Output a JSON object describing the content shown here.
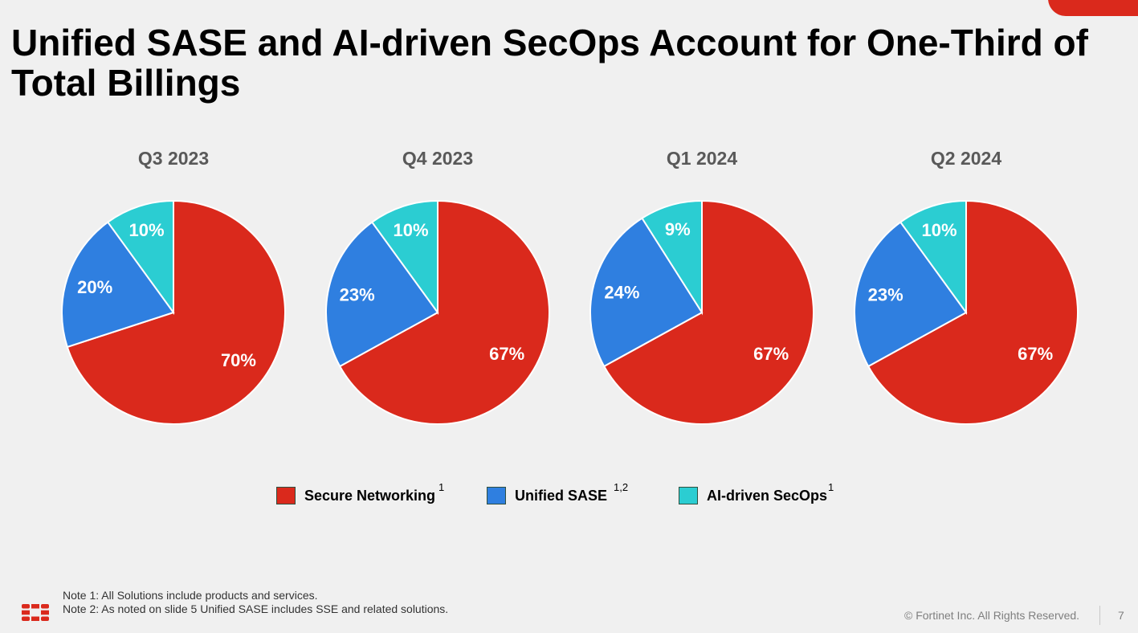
{
  "slide": {
    "title": "Unified SASE and AI-driven SecOps Account for One-Third of Total Billings",
    "notes": [
      "Note 1: All Solutions include products and services.",
      "Note 2: As noted on slide 5 Unified SASE includes SSE and related solutions."
    ],
    "copyright": "© Fortinet Inc. All Rights Reserved.",
    "page_number": "7",
    "logo_icon": "fortinet-logo-icon"
  },
  "legend": [
    {
      "label": "Secure Networking",
      "sup": "1",
      "color": "#da291c"
    },
    {
      "label": "Unified SASE",
      "sup": "1,2",
      "color": "#2f7fe0"
    },
    {
      "label": "AI-driven SecOps",
      "sup": "1",
      "color": "#2bcdd2"
    }
  ],
  "chart_data": [
    {
      "type": "pie",
      "title": "Q3 2023",
      "categories": [
        "Secure Networking",
        "Unified SASE",
        "AI-driven SecOps"
      ],
      "values": [
        70,
        20,
        10
      ],
      "labels": [
        "70%",
        "20%",
        "10%"
      ]
    },
    {
      "type": "pie",
      "title": "Q4 2023",
      "categories": [
        "Secure Networking",
        "Unified SASE",
        "AI-driven SecOps"
      ],
      "values": [
        67,
        23,
        10
      ],
      "labels": [
        "67%",
        "23%",
        "10%"
      ]
    },
    {
      "type": "pie",
      "title": "Q1 2024",
      "categories": [
        "Secure Networking",
        "Unified SASE",
        "AI-driven SecOps"
      ],
      "values": [
        67,
        24,
        9
      ],
      "labels": [
        "67%",
        "24%",
        "9%"
      ]
    },
    {
      "type": "pie",
      "title": "Q2 2024",
      "categories": [
        "Secure Networking",
        "Unified SASE",
        "AI-driven SecOps"
      ],
      "values": [
        67,
        23,
        10
      ],
      "labels": [
        "67%",
        "23%",
        "10%"
      ]
    }
  ]
}
